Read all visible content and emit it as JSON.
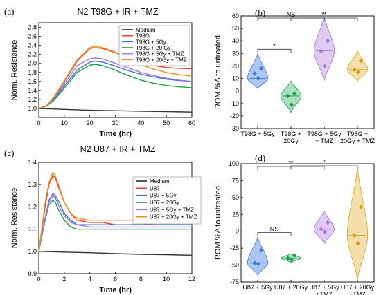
{
  "chart_data": [
    {
      "type": "line",
      "panel_label": "(a)",
      "title": "N2 T98G + IR + TMZ",
      "xlabel": "Time (hr)",
      "ylabel": "Norm. Resistance",
      "xlim": [
        0,
        60
      ],
      "ylim": [
        0.8,
        2.9
      ],
      "xticks": [
        "0",
        "10",
        "20",
        "30",
        "40",
        "50",
        "60"
      ],
      "yticks": [
        "1.0",
        "1.2",
        "1.4",
        "1.6",
        "1.8",
        "2.0",
        "2.2",
        "2.4",
        "2.6",
        "2.8"
      ],
      "legend": "top-right",
      "series": [
        {
          "name": "Medium",
          "color": "#333333",
          "x": [
            0,
            5,
            10,
            20,
            30,
            40,
            50,
            60
          ],
          "y": [
            1.0,
            0.99,
            0.98,
            0.96,
            0.95,
            0.94,
            0.93,
            0.92
          ]
        },
        {
          "name": "T98G",
          "color": "#e8412c",
          "x": [
            0,
            3,
            6,
            10,
            15,
            20,
            22,
            25,
            30,
            35,
            40,
            45,
            50,
            55,
            60
          ],
          "y": [
            1.0,
            1.06,
            1.25,
            1.6,
            2.05,
            2.33,
            2.35,
            2.33,
            2.24,
            2.12,
            2.02,
            1.95,
            1.91,
            1.89,
            1.88
          ]
        },
        {
          "name": "T98G + 5Gy",
          "color": "#3f6fd6",
          "x": [
            0,
            3,
            6,
            10,
            15,
            20,
            22,
            25,
            30,
            35,
            40,
            45,
            50,
            55,
            60
          ],
          "y": [
            1.0,
            1.05,
            1.2,
            1.5,
            1.85,
            2.03,
            2.05,
            2.03,
            1.94,
            1.84,
            1.76,
            1.7,
            1.65,
            1.62,
            1.6
          ]
        },
        {
          "name": "T98G + 20 Gy",
          "color": "#1e9b4a",
          "x": [
            0,
            3,
            6,
            10,
            15,
            20,
            22,
            25,
            30,
            35,
            40,
            45,
            50,
            55,
            60
          ],
          "y": [
            1.0,
            1.05,
            1.18,
            1.45,
            1.8,
            1.96,
            1.98,
            1.95,
            1.85,
            1.73,
            1.63,
            1.56,
            1.51,
            1.48,
            1.46
          ]
        },
        {
          "name": "T98G + 5Gy + TMZ",
          "color": "#a576d6",
          "x": [
            0,
            3,
            6,
            10,
            15,
            20,
            22,
            25,
            30,
            35,
            40,
            45,
            50,
            55,
            60
          ],
          "y": [
            1.0,
            1.05,
            1.22,
            1.55,
            1.95,
            2.1,
            2.12,
            2.1,
            2.0,
            1.9,
            1.8,
            1.73,
            1.67,
            1.63,
            1.6
          ]
        },
        {
          "name": "T98G + 20Gy + TMZ",
          "color": "#e8941a",
          "x": [
            0,
            3,
            6,
            10,
            15,
            20,
            22,
            25,
            30,
            35,
            40,
            45,
            50,
            55,
            60
          ],
          "y": [
            1.0,
            1.06,
            1.26,
            1.62,
            2.08,
            2.35,
            2.38,
            2.35,
            2.25,
            2.1,
            1.97,
            1.87,
            1.8,
            1.75,
            1.72
          ]
        }
      ]
    },
    {
      "type": "violin",
      "panel_label": "(b)",
      "ylabel": "ROM %Δ to untreated",
      "ylim": [
        -30,
        60
      ],
      "yticks": [
        "-30",
        "-20",
        "-10",
        "0",
        "10",
        "20",
        "30",
        "40",
        "50",
        "60"
      ],
      "categories": [
        "T98G + 5Gy",
        "T98G +\n20Gy",
        "T98G + 5Gy\n+ TMZ",
        "T98G +\n20Gy + TMZ"
      ],
      "series": [
        {
          "color": "#3f7bd6",
          "fill": "#8fb3ec",
          "points": [
            18,
            14,
            10
          ],
          "median": 10,
          "range": [
            2,
            30
          ]
        },
        {
          "color": "#1e9b4a",
          "fill": "#8fd6a6",
          "points": [
            -2,
            -4,
            -11
          ],
          "median": -4,
          "range": [
            -17,
            8
          ]
        },
        {
          "color": "#a576d6",
          "fill": "#d6b8f0",
          "points": [
            40,
            32,
            20
          ],
          "median": 32,
          "range": [
            8,
            60
          ]
        },
        {
          "color": "#d6a01e",
          "fill": "#f0d490",
          "points": [
            24,
            17,
            15
          ],
          "median": 17,
          "range": [
            8,
            32
          ]
        }
      ],
      "comparisons": [
        {
          "from": 0,
          "to": 1,
          "label": "*"
        },
        {
          "from": 0,
          "to": 2,
          "label": "NS"
        },
        {
          "from": 1,
          "to": 3,
          "label": "**"
        }
      ]
    },
    {
      "type": "line",
      "panel_label": "(c)",
      "title": "N2 U87 + IR + TMZ",
      "xlabel": "Time (hr)",
      "ylabel": "Norm. Resistance",
      "xlim": [
        0,
        12
      ],
      "ylim": [
        0.9,
        1.4
      ],
      "xticks": [
        "0",
        "2",
        "4",
        "6",
        "8",
        "10",
        "12"
      ],
      "yticks": [
        "0.9",
        "1.0",
        "1.1",
        "1.2",
        "1.3",
        "1.4"
      ],
      "legend": "right",
      "series": [
        {
          "name": "Medium",
          "color": "#333333",
          "x": [
            0,
            2,
            4,
            6,
            8,
            10,
            12
          ],
          "y": [
            1.0,
            0.997,
            0.994,
            0.99,
            0.987,
            0.985,
            0.983
          ]
        },
        {
          "name": "U87",
          "color": "#e8412c",
          "x": [
            0,
            0.5,
            0.8,
            1.1,
            1.3,
            1.6,
            2.0,
            2.5,
            3,
            4,
            5,
            6,
            8,
            10,
            12
          ],
          "y": [
            1.0,
            1.2,
            1.3,
            1.34,
            1.33,
            1.28,
            1.22,
            1.17,
            1.14,
            1.13,
            1.13,
            1.12,
            1.12,
            1.13,
            1.13
          ]
        },
        {
          "name": "U87 + 5Gy",
          "color": "#3f6fd6",
          "x": [
            0,
            0.5,
            0.8,
            1.1,
            1.3,
            1.6,
            2.0,
            2.5,
            3,
            4,
            5,
            6,
            8,
            10,
            12
          ],
          "y": [
            1.0,
            1.15,
            1.23,
            1.26,
            1.25,
            1.22,
            1.17,
            1.14,
            1.12,
            1.12,
            1.12,
            1.12,
            1.12,
            1.12,
            1.12
          ]
        },
        {
          "name": "U87 + 20Gy",
          "color": "#1e9b4a",
          "x": [
            0,
            0.5,
            0.8,
            1.1,
            1.3,
            1.6,
            2.0,
            2.5,
            3,
            4,
            5,
            6,
            8,
            10,
            12
          ],
          "y": [
            1.0,
            1.14,
            1.21,
            1.23,
            1.22,
            1.18,
            1.14,
            1.11,
            1.1,
            1.1,
            1.1,
            1.1,
            1.1,
            1.1,
            1.1
          ]
        },
        {
          "name": "U87 + 5Gy + TMZ",
          "color": "#a576d6",
          "x": [
            0,
            0.5,
            0.8,
            1.1,
            1.3,
            1.6,
            2.0,
            2.5,
            3,
            4,
            5,
            6,
            8,
            10,
            12
          ],
          "y": [
            1.0,
            1.15,
            1.22,
            1.25,
            1.24,
            1.2,
            1.16,
            1.13,
            1.12,
            1.11,
            1.11,
            1.11,
            1.11,
            1.11,
            1.11
          ]
        },
        {
          "name": "U87 + 20Gy + TMZ",
          "color": "#e8941a",
          "x": [
            0,
            0.5,
            0.8,
            1.1,
            1.3,
            1.6,
            2.0,
            2.5,
            3,
            4,
            5,
            6,
            8,
            10,
            12
          ],
          "y": [
            1.0,
            1.22,
            1.31,
            1.355,
            1.34,
            1.29,
            1.22,
            1.17,
            1.15,
            1.14,
            1.14,
            1.14,
            1.14,
            1.15,
            1.14
          ]
        }
      ]
    },
    {
      "type": "violin",
      "panel_label": "(d)",
      "ylabel": "ROM %Δ to untreated",
      "ylim": [
        -75,
        100
      ],
      "yticks": [
        "-75",
        "-50",
        "-25",
        "0",
        "25",
        "50",
        "75",
        "100"
      ],
      "categories": [
        "U87 + 5Gy",
        "U87 + 20Gy",
        "U87 + 5Gy\n+TMZ",
        "U87 + 20Gy\n+TMZ"
      ],
      "series": [
        {
          "color": "#3f7bd6",
          "fill": "#8fb3ec",
          "points": [
            -28,
            -47,
            -48
          ],
          "median": -47,
          "range": [
            -65,
            -8
          ]
        },
        {
          "color": "#1e9b4a",
          "fill": "#8fd6a6",
          "points": [
            -36,
            -40,
            -42
          ],
          "median": -40,
          "range": [
            -46,
            -33
          ]
        },
        {
          "color": "#a576d6",
          "fill": "#d6b8f0",
          "points": [
            13,
            3,
            -1
          ],
          "median": 3,
          "range": [
            -18,
            30
          ]
        },
        {
          "color": "#d6a01e",
          "fill": "#f0d490",
          "points": [
            36,
            -6,
            -18
          ],
          "median": -6,
          "range": [
            -72,
            95
          ]
        }
      ],
      "comparisons": [
        {
          "from": 0,
          "to": 1,
          "label": "NS"
        },
        {
          "from": 0,
          "to": 2,
          "label": "**"
        },
        {
          "from": 1,
          "to": 3,
          "label": "*"
        }
      ]
    }
  ]
}
